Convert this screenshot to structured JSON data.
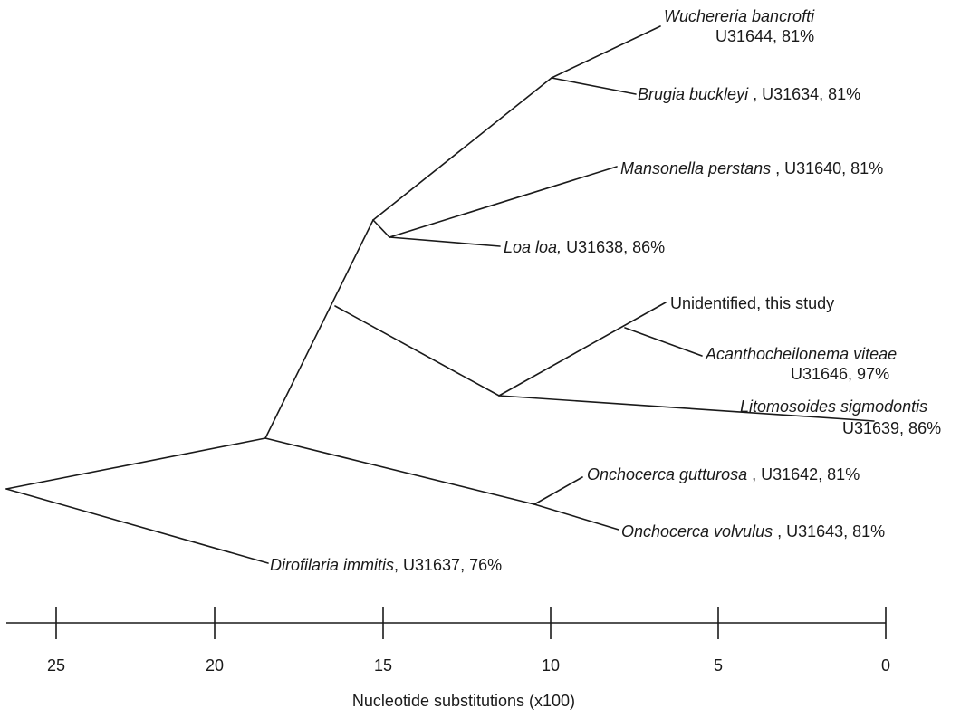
{
  "taxa": [
    {
      "id": "wuchereria",
      "species": "Wuchereria bancrofti",
      "accession": "U31644, 81%"
    },
    {
      "id": "brugia",
      "species": "Brugia buckleyi",
      "accession": " , U31634, 81%"
    },
    {
      "id": "mansonella",
      "species": "Mansonella perstans",
      "accession": " , U31640, 81%"
    },
    {
      "id": "loa",
      "species": "Loa loa,",
      "accession": " U31638, 86%"
    },
    {
      "id": "unidentified",
      "label": "Unidentified, this study"
    },
    {
      "id": "acanthocheilonema",
      "species": "Acanthocheilonema viteae",
      "accession": "U31646, 97%"
    },
    {
      "id": "litomosoides",
      "species": "Litomosoides sigmodontis",
      "accession": "U31639, 86%"
    },
    {
      "id": "onchocerca_g",
      "species": "Onchocerca gutturosa",
      "accession": " , U31642, 81%"
    },
    {
      "id": "onchocerca_v",
      "species": "Onchocerca volvulus",
      "accession": " , U31643, 81%"
    },
    {
      "id": "dirofilaria",
      "species": "Dirofilaria immitis",
      "accession": ", U31637, 76%"
    }
  ],
  "axis": {
    "label": "Nucleotide substitutions (x100)",
    "ticks": [
      "25",
      "20",
      "15",
      "10",
      "5",
      "0"
    ]
  }
}
